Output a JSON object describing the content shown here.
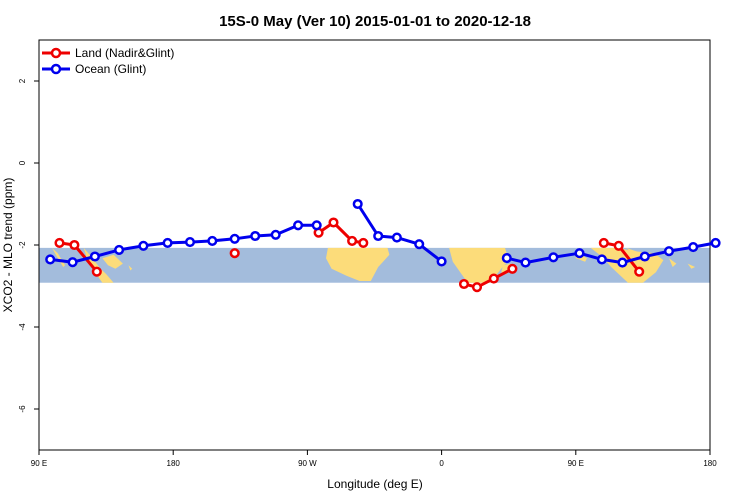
{
  "chart_data": {
    "type": "line",
    "title": "15S-0 May (Ver 10)   2015-01-01 to 2020-12-18",
    "xlabel": "Longitude (deg E)",
    "ylabel": "XCO2 - MLO trend (ppm)",
    "xlim": [
      90,
      450
    ],
    "ylim": [
      -7,
      3
    ],
    "x_ticks": [
      {
        "value": 90,
        "label": "90 E"
      },
      {
        "value": 162,
        "label": "180"
      },
      {
        "value": 234,
        "label": "90 W"
      },
      {
        "value": 306,
        "label": "0"
      },
      {
        "value": 378,
        "label": "90 E"
      },
      {
        "value": 450,
        "label": "180"
      }
    ],
    "y_ticks": [
      {
        "value": -6,
        "label": "-6"
      },
      {
        "value": -4,
        "label": "-4"
      },
      {
        "value": -2,
        "label": "-2"
      },
      {
        "value": 0,
        "label": "0"
      },
      {
        "value": 2,
        "label": "2"
      }
    ],
    "legend_position": "top-left",
    "series": [
      {
        "name": "Land (Nadir&Glint)",
        "color": "#ee0000",
        "segments": [
          [
            [
              101,
              -1.95
            ],
            [
              109,
              -2.0
            ],
            [
              121,
              -2.65
            ]
          ],
          [
            [
              195,
              -2.2
            ]
          ],
          [
            [
              240,
              -1.7
            ],
            [
              248,
              -1.45
            ],
            [
              258,
              -1.9
            ],
            [
              264,
              -1.95
            ]
          ],
          [
            [
              318,
              -2.95
            ],
            [
              325,
              -3.03
            ],
            [
              334,
              -2.82
            ],
            [
              344,
              -2.58
            ]
          ],
          [
            [
              393,
              -1.95
            ],
            [
              401,
              -2.02
            ],
            [
              412,
              -2.65
            ]
          ]
        ]
      },
      {
        "name": "Ocean (Glint)",
        "color": "#0000ee",
        "segments": [
          [
            [
              96,
              -2.35
            ],
            [
              108,
              -2.42
            ],
            [
              120,
              -2.28
            ],
            [
              133,
              -2.12
            ],
            [
              146,
              -2.02
            ],
            [
              159,
              -1.95
            ],
            [
              171,
              -1.93
            ],
            [
              183,
              -1.9
            ],
            [
              195,
              -1.85
            ],
            [
              206,
              -1.78
            ],
            [
              217,
              -1.75
            ],
            [
              229,
              -1.52
            ],
            [
              239,
              -1.52
            ]
          ],
          [
            [
              261,
              -1.0
            ],
            [
              272,
              -1.78
            ],
            [
              282,
              -1.82
            ],
            [
              294,
              -1.98
            ],
            [
              306,
              -2.4
            ]
          ],
          [
            [
              341,
              -2.32
            ],
            [
              351,
              -2.43
            ],
            [
              366,
              -2.3
            ],
            [
              380,
              -2.2
            ],
            [
              392,
              -2.35
            ],
            [
              403,
              -2.43
            ],
            [
              415,
              -2.28
            ],
            [
              428,
              -2.15
            ],
            [
              441,
              -2.05
            ],
            [
              453,
              -1.95
            ]
          ]
        ]
      }
    ],
    "background_band": {
      "y_range": [
        -2.07,
        -2.92
      ],
      "ocean_color": "#a3bcdc",
      "land_color": "#fcdc7a"
    }
  }
}
